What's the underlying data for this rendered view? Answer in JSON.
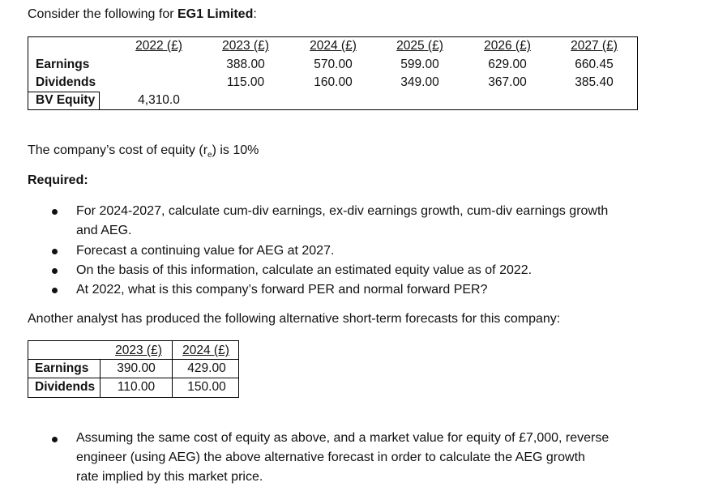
{
  "intro": {
    "prefix": "Consider the following for ",
    "company": "EG1 Limited",
    "suffix": ":"
  },
  "table1": {
    "headers": [
      "2022 (£)",
      "2023 (£)",
      "2024 (£)",
      "2025 (£)",
      "2026 (£)",
      "2027 (£)"
    ],
    "rows": [
      {
        "label": "Earnings",
        "values": [
          "",
          "388.00",
          "570.00",
          "599.00",
          "629.00",
          "660.45"
        ]
      },
      {
        "label": "Dividends",
        "values": [
          "",
          "115.00",
          "160.00",
          "349.00",
          "367.00",
          "385.40"
        ]
      },
      {
        "label": "BV Equity",
        "values": [
          "4,310.0",
          "",
          "",
          "",
          "",
          ""
        ]
      }
    ]
  },
  "cost_of_equity": {
    "prefix": "The company’s cost of equity (r",
    "sub": "e",
    "suffix": ") is 10%"
  },
  "required_label": "Required:",
  "bullets": [
    "For 2024-2027, calculate cum-div earnings, ex-div earnings growth, cum-div earnings growth",
    "and AEG.",
    "Forecast a continuing value for AEG at 2027.",
    "On the basis of this information, calculate an estimated equity value as of 2022.",
    "At 2022, what is this company’s forward PER and normal forward PER?"
  ],
  "alt_intro": "Another analyst has produced the following alternative short-term forecasts for this company:",
  "table2": {
    "headers": [
      "2023 (£)",
      "2024 (£)"
    ],
    "rows": [
      {
        "label": "Earnings",
        "values": [
          "390.00",
          "429.00"
        ]
      },
      {
        "label": "Dividends",
        "values": [
          "110.00",
          "150.00"
        ]
      }
    ]
  },
  "final_bullet": [
    "Assuming the same cost of equity as above, and a market value for equity of £7,000, reverse",
    "engineer (using AEG) the above alternative forecast in order to calculate the AEG growth",
    "rate implied by this market price."
  ]
}
